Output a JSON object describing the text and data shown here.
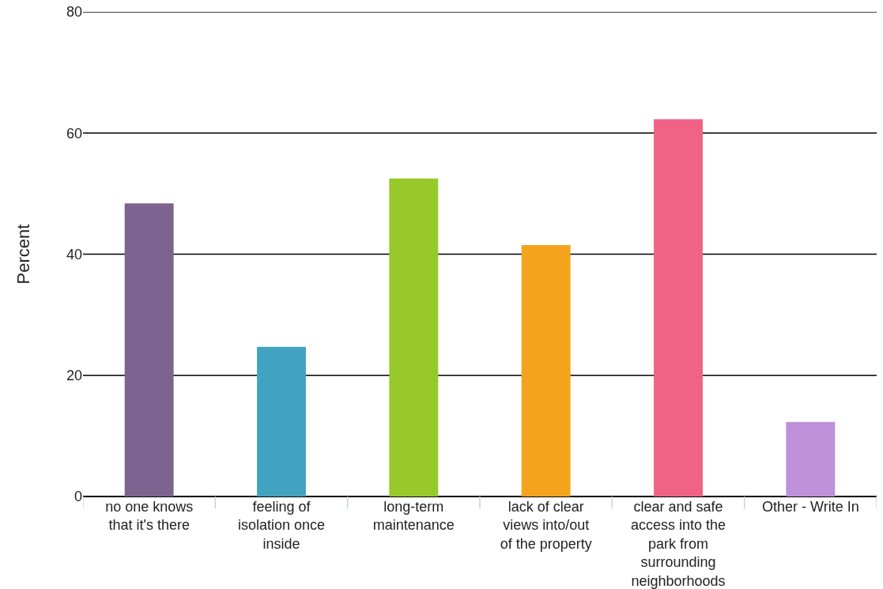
{
  "chart_data": {
    "type": "bar",
    "ylabel": "Percent",
    "categories": [
      "no one knows that it's there",
      "feeling of isolation once inside",
      "long-term maintenance",
      "lack of clear views into/out of the property",
      "clear and safe access into the park from surrounding neighborhoods",
      "Other - Write In"
    ],
    "values": [
      48.4,
      24.7,
      52.5,
      41.5,
      62.3,
      12.3
    ],
    "colors": [
      "#7d6390",
      "#42a3c1",
      "#97c92b",
      "#f4a31d",
      "#f06385",
      "#be90d9"
    ],
    "ylim": [
      0,
      80
    ],
    "yticks": [
      0,
      20,
      40,
      60,
      80
    ],
    "grid": "y"
  }
}
